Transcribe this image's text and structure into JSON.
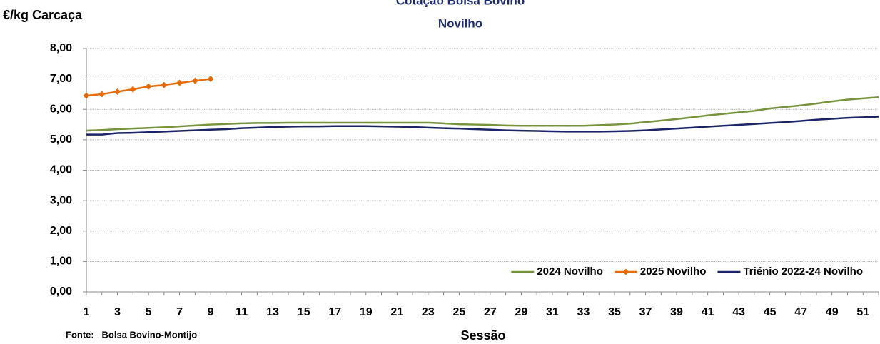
{
  "chart_data": {
    "type": "line",
    "title": "Cotação Bolsa Bovino",
    "subtitle": "Novilho",
    "y_label": "€/kg Carcaça",
    "x_label": "Sessão",
    "source": "Fonte:   Bolsa Bovino-Montijo",
    "x": [
      1,
      2,
      3,
      4,
      5,
      6,
      7,
      8,
      9,
      10,
      11,
      12,
      13,
      14,
      15,
      16,
      17,
      18,
      19,
      20,
      21,
      22,
      23,
      24,
      25,
      26,
      27,
      28,
      29,
      30,
      31,
      32,
      33,
      34,
      35,
      36,
      37,
      38,
      39,
      40,
      41,
      42,
      43,
      44,
      45,
      46,
      47,
      48,
      49,
      50,
      51,
      52
    ],
    "xlim": [
      1,
      52
    ],
    "xticks": [
      1,
      3,
      5,
      7,
      9,
      11,
      13,
      15,
      17,
      19,
      21,
      23,
      25,
      27,
      29,
      31,
      33,
      35,
      37,
      39,
      41,
      43,
      45,
      47,
      49,
      51
    ],
    "ylim": [
      0,
      8
    ],
    "yticks": [
      {
        "value": 0,
        "label": "0,00"
      },
      {
        "value": 1,
        "label": "1,00"
      },
      {
        "value": 2,
        "label": "2,00"
      },
      {
        "value": 3,
        "label": "3,00"
      },
      {
        "value": 4,
        "label": "4,00"
      },
      {
        "value": 5,
        "label": "5,00"
      },
      {
        "value": 6,
        "label": "6,00"
      },
      {
        "value": 7,
        "label": "7,00"
      },
      {
        "value": 8,
        "label": "8,00"
      }
    ],
    "grid": true,
    "legend": "bottom-right",
    "series": [
      {
        "name": "2024 Novilho",
        "color": "#77933c",
        "marker": "none",
        "values": [
          5.3,
          5.32,
          5.35,
          5.37,
          5.39,
          5.41,
          5.44,
          5.47,
          5.5,
          5.52,
          5.54,
          5.55,
          5.55,
          5.56,
          5.56,
          5.56,
          5.56,
          5.56,
          5.56,
          5.56,
          5.56,
          5.56,
          5.56,
          5.54,
          5.51,
          5.5,
          5.49,
          5.47,
          5.46,
          5.46,
          5.46,
          5.46,
          5.46,
          5.48,
          5.5,
          5.53,
          5.58,
          5.63,
          5.68,
          5.74,
          5.8,
          5.85,
          5.9,
          5.95,
          6.03,
          6.08,
          6.13,
          6.19,
          6.26,
          6.32,
          6.36,
          6.4
        ]
      },
      {
        "name": "2025 Novilho",
        "color": "#e46c0a",
        "marker": "diamond",
        "values": [
          6.45,
          6.5,
          6.58,
          6.66,
          6.75,
          6.8,
          6.87,
          6.94,
          7.0,
          null,
          null,
          null,
          null,
          null,
          null,
          null,
          null,
          null,
          null,
          null,
          null,
          null,
          null,
          null,
          null,
          null,
          null,
          null,
          null,
          null,
          null,
          null,
          null,
          null,
          null,
          null,
          null,
          null,
          null,
          null,
          null,
          null,
          null,
          null,
          null,
          null,
          null,
          null,
          null,
          null,
          null,
          null
        ]
      },
      {
        "name": "Triénio 2022-24 Novilho",
        "color": "#1a2466",
        "marker": "none",
        "values": [
          5.17,
          5.17,
          5.22,
          5.23,
          5.25,
          5.27,
          5.29,
          5.31,
          5.33,
          5.35,
          5.38,
          5.4,
          5.42,
          5.43,
          5.44,
          5.44,
          5.45,
          5.45,
          5.45,
          5.44,
          5.43,
          5.42,
          5.4,
          5.38,
          5.37,
          5.35,
          5.33,
          5.31,
          5.3,
          5.29,
          5.28,
          5.27,
          5.27,
          5.27,
          5.28,
          5.29,
          5.31,
          5.34,
          5.37,
          5.4,
          5.43,
          5.46,
          5.49,
          5.52,
          5.55,
          5.58,
          5.62,
          5.66,
          5.69,
          5.72,
          5.74,
          5.76
        ]
      }
    ]
  }
}
